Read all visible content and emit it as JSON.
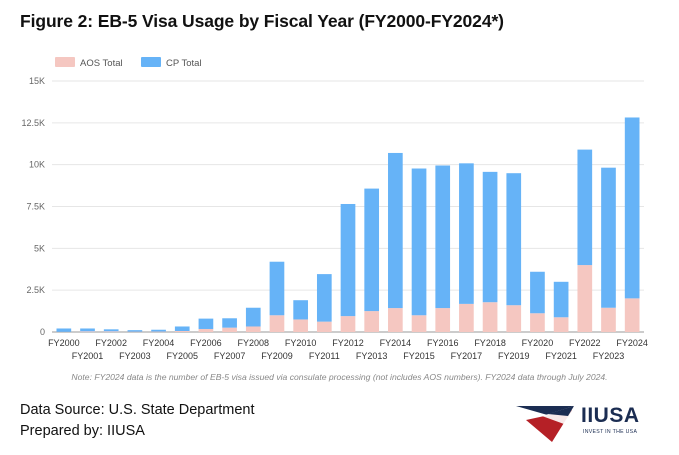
{
  "title": "Figure 2: EB-5 Visa Usage by Fiscal Year (FY2000-FY2024*)",
  "colors": {
    "aos": "#f5c7c1",
    "cp": "#66b3f7",
    "grid": "#e6e6e6"
  },
  "chart_data": {
    "type": "bar",
    "stacked": true,
    "categories": [
      "FY2000",
      "FY2001",
      "FY2002",
      "FY2003",
      "FY2004",
      "FY2005",
      "FY2006",
      "FY2007",
      "FY2008",
      "FY2009",
      "FY2010",
      "FY2011",
      "FY2012",
      "FY2013",
      "FY2014",
      "FY2015",
      "FY2016",
      "FY2017",
      "FY2018",
      "FY2019",
      "FY2020",
      "FY2021",
      "FY2022",
      "FY2023",
      "FY2024"
    ],
    "series": [
      {
        "name": "AOS Total",
        "values": [
          10,
          40,
          40,
          20,
          25,
          60,
          180,
          260,
          330,
          1000,
          750,
          620,
          950,
          1250,
          1430,
          1000,
          1430,
          1680,
          1780,
          1600,
          1120,
          880,
          4000,
          1450,
          2010
        ]
      },
      {
        "name": "CP Total",
        "values": [
          200,
          170,
          120,
          90,
          110,
          270,
          620,
          560,
          1120,
          3200,
          1150,
          2840,
          6700,
          7320,
          9270,
          8770,
          8520,
          8400,
          7790,
          7890,
          2480,
          2120,
          6900,
          8370,
          10810
        ]
      }
    ],
    "yticks": [
      "0",
      "2.5K",
      "5K",
      "7.5K",
      "10K",
      "12.5K",
      "15K"
    ],
    "ylim": [
      0,
      15000
    ],
    "grid": true,
    "legend_position": "top-left"
  },
  "note": "Note: FY2024 data is the number of EB-5 visa issued via consulate processing (not includes AOS numbers). FY2024 data through July 2024.",
  "footer": {
    "source": "Data Source: U.S. State Department",
    "prepared": "Prepared by: IIUSA"
  },
  "logo": {
    "text": "IIUSA",
    "tagline": "INVEST IN THE USA"
  }
}
